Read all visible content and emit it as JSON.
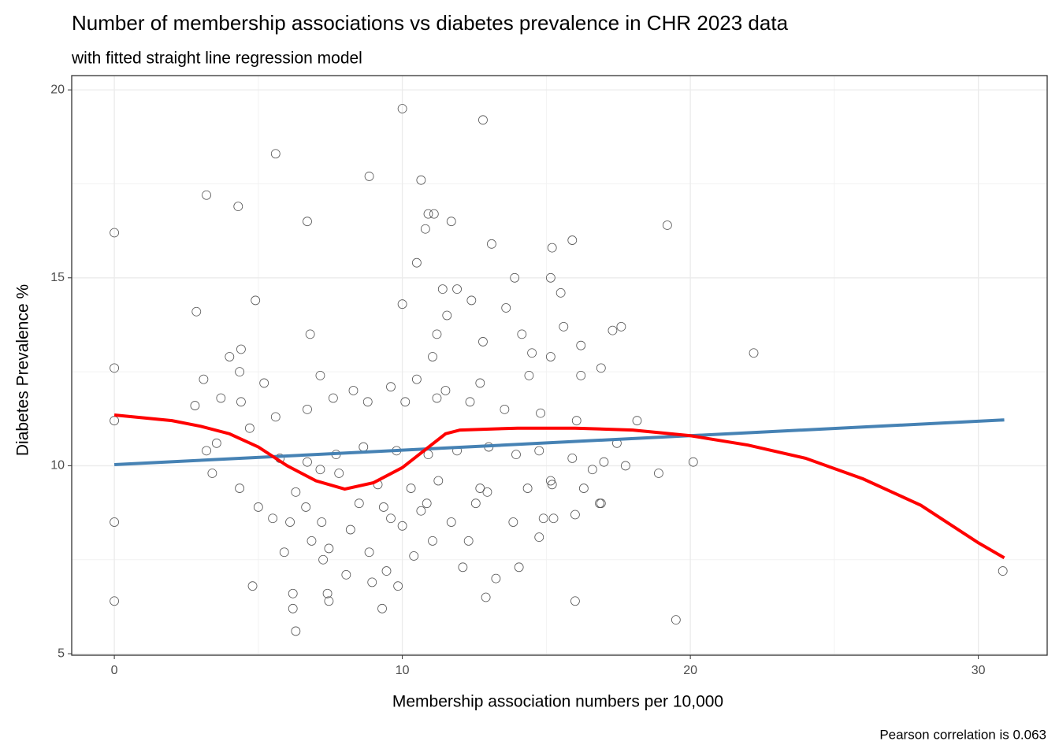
{
  "chart_data": {
    "type": "scatter",
    "title": "Number of membership associations vs diabetes prevalence in CHR 2023 data",
    "subtitle": "with fitted straight line regression model",
    "x_label": "Membership association numbers per 10,000",
    "y_label": "Diabetes Prevalence %",
    "caption": "Pearson correlation is 0.063",
    "xlim": [
      -1.48,
      32.39
    ],
    "ylim": [
      4.96,
      20.38
    ],
    "xticks": [
      0,
      10,
      20,
      30
    ],
    "yticks": [
      5,
      10,
      15,
      20
    ],
    "x_minor": [
      5,
      15,
      25
    ],
    "y_minor": [
      7.5,
      12.5,
      17.5
    ],
    "grid": true,
    "color": "#555555",
    "x": [
      0,
      0,
      0,
      0,
      0,
      2.85,
      3.2,
      4.3,
      5.6,
      4.9,
      6.7,
      6.8,
      8.85,
      10.0,
      12.8,
      10.65,
      10.9,
      11.1,
      11.7,
      10.8,
      10.5,
      10.0,
      13.1,
      15.9,
      13.9,
      15.15,
      15.2,
      15.5,
      13.6,
      12.4,
      11.4,
      11.9,
      11.55,
      15.6,
      17.3,
      17.6,
      19.2,
      22.2,
      16.2,
      16.2,
      16.9,
      20.1,
      18.9,
      19.5,
      30.85,
      16.0,
      6.3,
      6.2,
      6.2,
      4.8,
      9.3,
      12.9,
      13.25,
      14.05,
      12.1,
      9.85,
      7.4,
      7.45,
      5.9,
      7.25,
      8.05,
      8.95,
      9.45,
      10.4,
      11.05,
      12.3,
      5.5,
      6.1,
      7.2,
      8.5,
      9.6,
      10.85,
      12.55,
      13.85,
      14.9,
      15.25,
      16.0,
      16.85,
      16.3,
      15.15,
      14.35,
      12.7,
      11.25,
      10.3,
      9.15,
      7.8,
      7.15,
      6.3,
      5.0,
      5.75,
      6.7,
      7.7,
      8.65,
      9.8,
      10.9,
      11.9,
      13.0,
      13.95,
      14.75,
      15.9,
      17.0,
      17.75,
      17.45,
      18.15,
      16.05,
      14.8,
      13.55,
      12.35,
      11.2,
      10.1,
      8.8,
      7.6,
      6.7,
      5.6,
      4.4,
      3.7,
      2.8,
      3.1,
      4.0,
      4.4,
      4.35,
      5.2,
      7.15,
      8.3,
      9.6,
      10.5,
      11.5,
      12.7,
      14.4,
      15.15,
      11.05,
      11.2,
      12.8,
      14.15,
      14.5,
      3.4,
      3.55,
      4.35,
      4.7,
      3.2,
      6.85,
      7.45,
      6.65,
      8.2,
      8.85,
      10.0,
      9.35,
      10.65,
      11.7,
      12.95,
      15.2,
      14.75,
      16.6,
      16.9
    ],
    "values": [
      16.2,
      12.6,
      11.2,
      8.5,
      6.4,
      14.1,
      17.2,
      16.9,
      18.3,
      14.4,
      16.5,
      13.5,
      17.7,
      19.5,
      19.2,
      17.6,
      16.7,
      16.7,
      16.5,
      16.3,
      15.4,
      14.3,
      15.9,
      16.0,
      15.0,
      15.0,
      15.8,
      14.6,
      14.2,
      14.4,
      14.7,
      14.7,
      14.0,
      13.7,
      13.6,
      13.7,
      16.4,
      13.0,
      13.2,
      12.4,
      12.6,
      10.1,
      9.8,
      5.9,
      7.2,
      6.4,
      5.6,
      6.2,
      6.6,
      6.8,
      6.2,
      6.5,
      7.0,
      7.3,
      7.3,
      6.8,
      6.6,
      6.4,
      7.7,
      7.5,
      7.1,
      6.9,
      7.2,
      7.6,
      8.0,
      8.0,
      8.6,
      8.5,
      8.5,
      9.0,
      8.6,
      9.0,
      9.0,
      8.5,
      8.6,
      8.6,
      8.7,
      9.0,
      9.4,
      9.6,
      9.4,
      9.4,
      9.6,
      9.4,
      9.5,
      9.8,
      9.9,
      9.3,
      8.9,
      10.2,
      10.1,
      10.3,
      10.5,
      10.4,
      10.3,
      10.4,
      10.5,
      10.3,
      10.4,
      10.2,
      10.1,
      10.0,
      10.6,
      11.2,
      11.2,
      11.4,
      11.5,
      11.7,
      11.8,
      11.7,
      11.7,
      11.8,
      11.5,
      11.3,
      11.7,
      11.8,
      11.6,
      12.3,
      12.9,
      13.1,
      12.5,
      12.2,
      12.4,
      12.0,
      12.1,
      12.3,
      12.0,
      12.2,
      12.4,
      12.9,
      12.9,
      13.5,
      13.3,
      13.5,
      13.0,
      9.8,
      10.6,
      9.4,
      11.0,
      10.4,
      8.0,
      7.8,
      8.9,
      8.3,
      7.7,
      8.4,
      8.9,
      8.8,
      8.5,
      9.3,
      9.5,
      8.1,
      9.9,
      9.0
    ],
    "lines": [
      {
        "color": "#4682b4",
        "x": [
          0,
          30.9
        ],
        "values": [
          10.03,
          11.22
        ]
      },
      {
        "color": "#ff0000",
        "x": [
          0,
          2,
          3,
          4,
          5,
          6,
          7,
          8,
          9,
          10,
          11,
          11.5,
          12,
          14,
          16,
          18,
          20,
          22,
          24,
          26,
          28,
          30,
          30.9
        ],
        "values": [
          11.35,
          11.2,
          11.05,
          10.85,
          10.5,
          10.0,
          9.6,
          9.38,
          9.55,
          9.95,
          10.55,
          10.85,
          10.95,
          11.0,
          11.0,
          10.95,
          10.8,
          10.55,
          10.2,
          9.65,
          8.95,
          7.95,
          7.55
        ]
      }
    ]
  }
}
